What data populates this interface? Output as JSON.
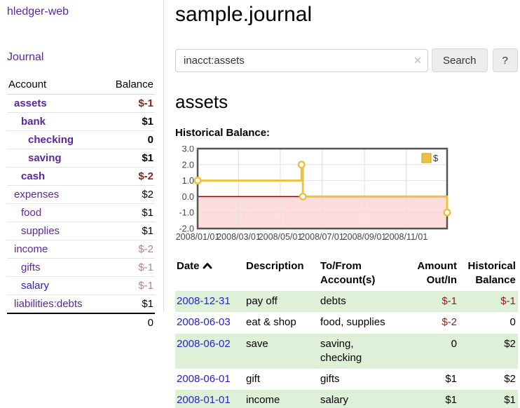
{
  "app": {
    "title": "hledger-web",
    "nav_journal": "Journal"
  },
  "sidebar": {
    "header_account": "Account",
    "header_balance": "Balance",
    "accounts": [
      {
        "name": "assets",
        "balance": "$-1"
      },
      {
        "name": "bank",
        "balance": "$1"
      },
      {
        "name": "checking",
        "balance": "0"
      },
      {
        "name": "saving",
        "balance": "$1"
      },
      {
        "name": "cash",
        "balance": "$-2"
      },
      {
        "name": "expenses",
        "balance": "$2"
      },
      {
        "name": "food",
        "balance": "$1"
      },
      {
        "name": "supplies",
        "balance": "$1"
      },
      {
        "name": "income",
        "balance": "$-2"
      },
      {
        "name": "gifts",
        "balance": "$-1"
      },
      {
        "name": "salary",
        "balance": "$-1"
      },
      {
        "name": "liabilities:debts",
        "balance": "$1"
      }
    ],
    "total": "0"
  },
  "header": {
    "title": "sample.journal"
  },
  "search": {
    "value": "inacct:assets",
    "clear_icon": "✕",
    "button_label": "Search",
    "help_label": "?"
  },
  "content": {
    "account_heading": "assets",
    "chart_label": "Historical Balance:"
  },
  "chart_data": {
    "type": "line",
    "step": true,
    "title": "Historical Balance:",
    "series": [
      {
        "name": "$",
        "color": "#edc240",
        "points": [
          [
            "2008-01-01",
            1
          ],
          [
            "2008-06-01",
            2
          ],
          [
            "2008-06-02",
            2
          ],
          [
            "2008-06-03",
            0
          ],
          [
            "2008-12-31",
            -1
          ]
        ]
      }
    ],
    "x_range": [
      "2008-01-01",
      "2008-12-31"
    ],
    "ylim": [
      -2,
      3
    ],
    "y_ticks": [
      3,
      2,
      1,
      0,
      -1,
      -2
    ],
    "x_ticks": [
      "2008/01/01",
      "2008/03/01",
      "2008/05/01",
      "2008/07/01",
      "2008/09/01",
      "2008/11/01"
    ],
    "legend_position": "top-right",
    "grid": true,
    "colors": {
      "border": "#545454",
      "gridline": "#e0e0e0",
      "zero_line": "#8b0000",
      "negative_region": "#ffdddd",
      "legend_swatch_border": "#c79f24",
      "tick_text": "#444444"
    }
  },
  "register": {
    "headers": {
      "date": "Date",
      "description": "Description",
      "accounts": "To/From Account(s)",
      "amount": "Amount Out/In",
      "balance": "Historical Balance"
    },
    "rows": [
      {
        "date": "2008-12-31",
        "description": "pay off",
        "accounts": "debts",
        "amount": "$-1",
        "balance": "$-1"
      },
      {
        "date": "2008-06-03",
        "description": "eat & shop",
        "accounts": "food, supplies",
        "amount": "$-2",
        "balance": "0"
      },
      {
        "date": "2008-06-02",
        "description": "save",
        "accounts": "saving, checking",
        "amount": "0",
        "balance": "$2"
      },
      {
        "date": "2008-06-01",
        "description": "gift",
        "accounts": "gifts",
        "amount": "$1",
        "balance": "$2"
      },
      {
        "date": "2008-01-01",
        "description": "income",
        "accounts": "salary",
        "amount": "$1",
        "balance": "$1"
      }
    ]
  }
}
